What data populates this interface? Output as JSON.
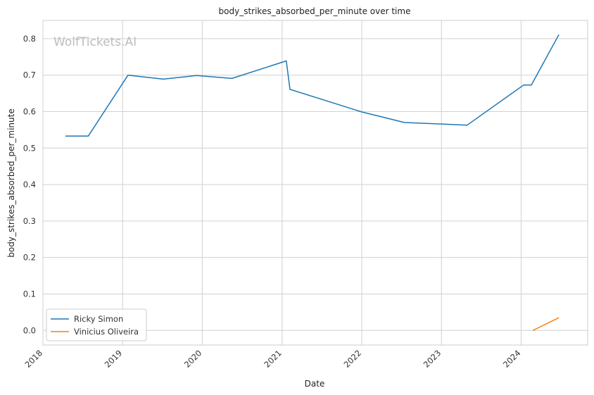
{
  "chart_data": {
    "type": "line",
    "title": "body_strikes_absorbed_per_minute over time",
    "xlabel": "Date",
    "ylabel": "body_strikes_absorbed_per_minute",
    "watermark": "WolfTickets.AI",
    "xlim": [
      "2018-01-01",
      "2024-11-01"
    ],
    "ylim": [
      -0.04,
      0.85
    ],
    "xticks": [
      "2018-01-01",
      "2019-01-01",
      "2020-01-01",
      "2021-01-01",
      "2022-01-01",
      "2023-01-01",
      "2024-01-01"
    ],
    "xtick_labels": [
      "2018",
      "2019",
      "2020",
      "2021",
      "2022",
      "2023",
      "2024"
    ],
    "yticks": [
      0.0,
      0.1,
      0.2,
      0.3,
      0.4,
      0.5,
      0.6,
      0.7,
      0.8
    ],
    "ytick_labels": [
      "0.0",
      "0.1",
      "0.2",
      "0.3",
      "0.4",
      "0.5",
      "0.6",
      "0.7",
      "0.8"
    ],
    "grid": true,
    "legend_position": "lower-left",
    "series": [
      {
        "name": "Ricky Simon",
        "color": "#1f77b4",
        "x": [
          "2018-04-14",
          "2018-07-28",
          "2019-01-26",
          "2019-07-06",
          "2019-12-07",
          "2020-05-16",
          "2021-01-20",
          "2021-02-06",
          "2022-01-01",
          "2022-07-16",
          "2023-04-29",
          "2024-01-13",
          "2024-02-17",
          "2024-06-22"
        ],
        "y": [
          0.533,
          0.533,
          0.7,
          0.689,
          0.699,
          0.691,
          0.739,
          0.661,
          0.599,
          0.57,
          0.563,
          0.673,
          0.673,
          0.811
        ]
      },
      {
        "name": "Vinicius Oliveira",
        "color": "#ff7f0e",
        "x": [
          "2024-02-24",
          "2024-06-22"
        ],
        "y": [
          0.0,
          0.035
        ]
      }
    ]
  }
}
